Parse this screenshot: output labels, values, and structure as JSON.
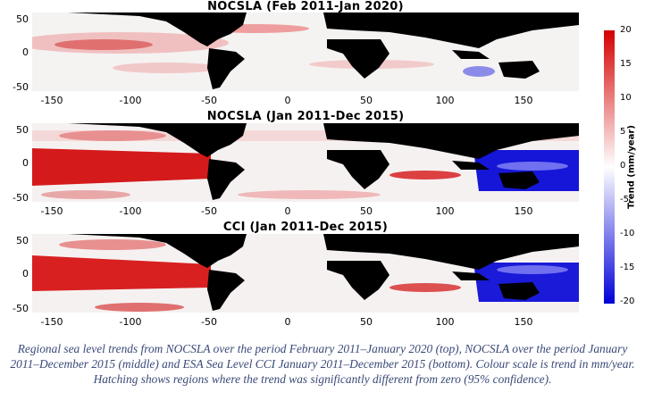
{
  "panels": [
    {
      "title": "NOCSLA   (Feb 2011-Jan 2020)"
    },
    {
      "title": "NOCSLA   (Jan 2011-Dec 2015)"
    },
    {
      "title": "CCI (Jan 2011-Dec 2015)"
    }
  ],
  "y_ticks": [
    "50",
    "0",
    "-50"
  ],
  "x_ticks": [
    "-150",
    "-100",
    "-50",
    "0",
    "50",
    "100",
    "150"
  ],
  "colorbar": {
    "label": "Trend (mm/year)",
    "ticks": [
      "20",
      "15",
      "10",
      "5",
      "0",
      "-5",
      "-10",
      "-15",
      "-20"
    ],
    "range": [
      -20,
      20
    ],
    "colors": {
      "high": "#d40000",
      "mid": "#ffffff",
      "low": "#0000d8"
    }
  },
  "caption": "Regional sea level trends from NOCSLA over the period February 2011–January 2020 (top), NOCSLA over the period January 2011–December 2015 (middle) and ESA Sea Level CCI January 2011–December 2015 (bottom). Colour scale is trend in mm/year. Hatching shows regions where the trend was significantly different from zero (95% confidence).",
  "colors": {
    "land": "#000000",
    "caption_text": "#3a4a78"
  }
}
